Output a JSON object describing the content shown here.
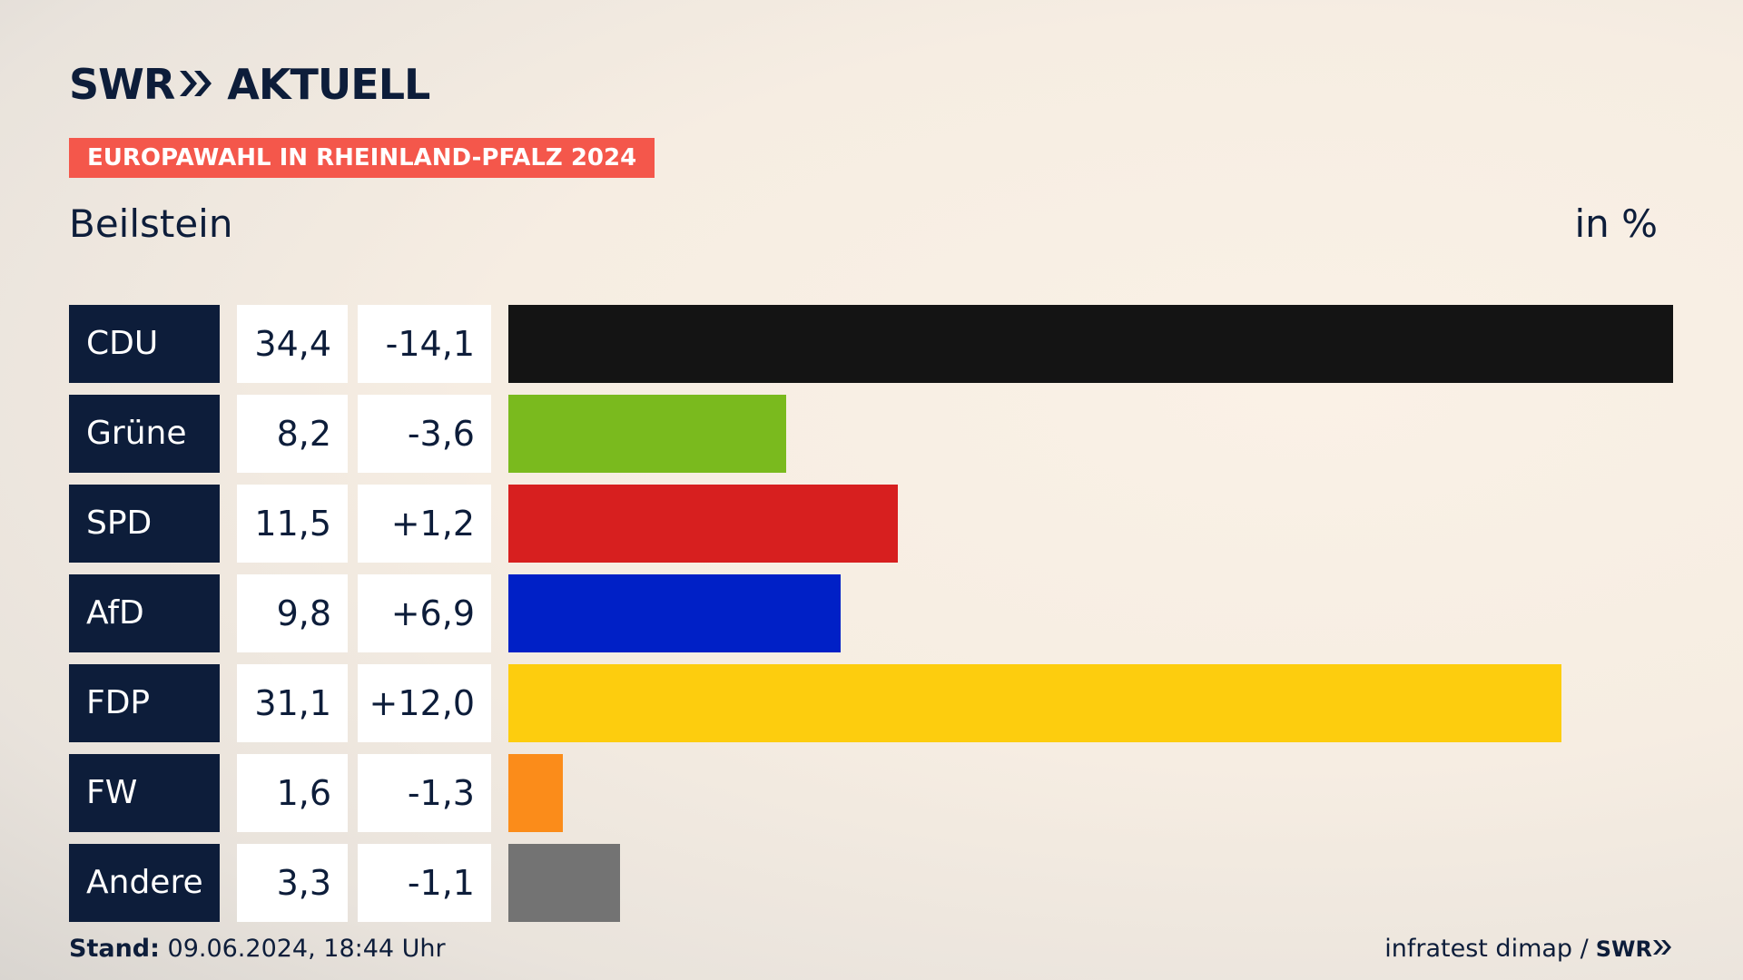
{
  "header": {
    "logo_prefix": "SWR",
    "logo_suffix": "AKTUELL",
    "tag": "EUROPAWAHL IN RHEINLAND-PFALZ 2024",
    "place": "Beilstein",
    "unit": "in %"
  },
  "footer": {
    "stand_label": "Stand:",
    "stand_value": "09.06.2024, 18:44 Uhr",
    "source": "infratest dimap /",
    "source_logo": "SWR"
  },
  "colors": {
    "navy": "#0d1d3a",
    "tag": "#f4574b"
  },
  "chart_data": {
    "type": "bar",
    "categories": [
      "CDU",
      "Grüne",
      "SPD",
      "AfD",
      "FDP",
      "FW",
      "Andere"
    ],
    "values": [
      34.4,
      8.2,
      11.5,
      9.8,
      31.1,
      1.6,
      3.3
    ],
    "value_labels": [
      "34,4",
      "8,2",
      "11,5",
      "9,8",
      "31,1",
      "1,6",
      "3,3"
    ],
    "change_labels": [
      "-14,1",
      "-3,6",
      "+1,2",
      "+6,9",
      "+12,0",
      "-1,3",
      "-1,1"
    ],
    "changes": [
      -14.1,
      -3.6,
      1.2,
      6.9,
      12.0,
      -1.3,
      -1.1
    ],
    "colors": [
      "#141414",
      "#7aba1e",
      "#d71f1f",
      "#0020c6",
      "#fdcd0e",
      "#fb8c1a",
      "#737373"
    ],
    "xlim": [
      0,
      34.4
    ]
  }
}
